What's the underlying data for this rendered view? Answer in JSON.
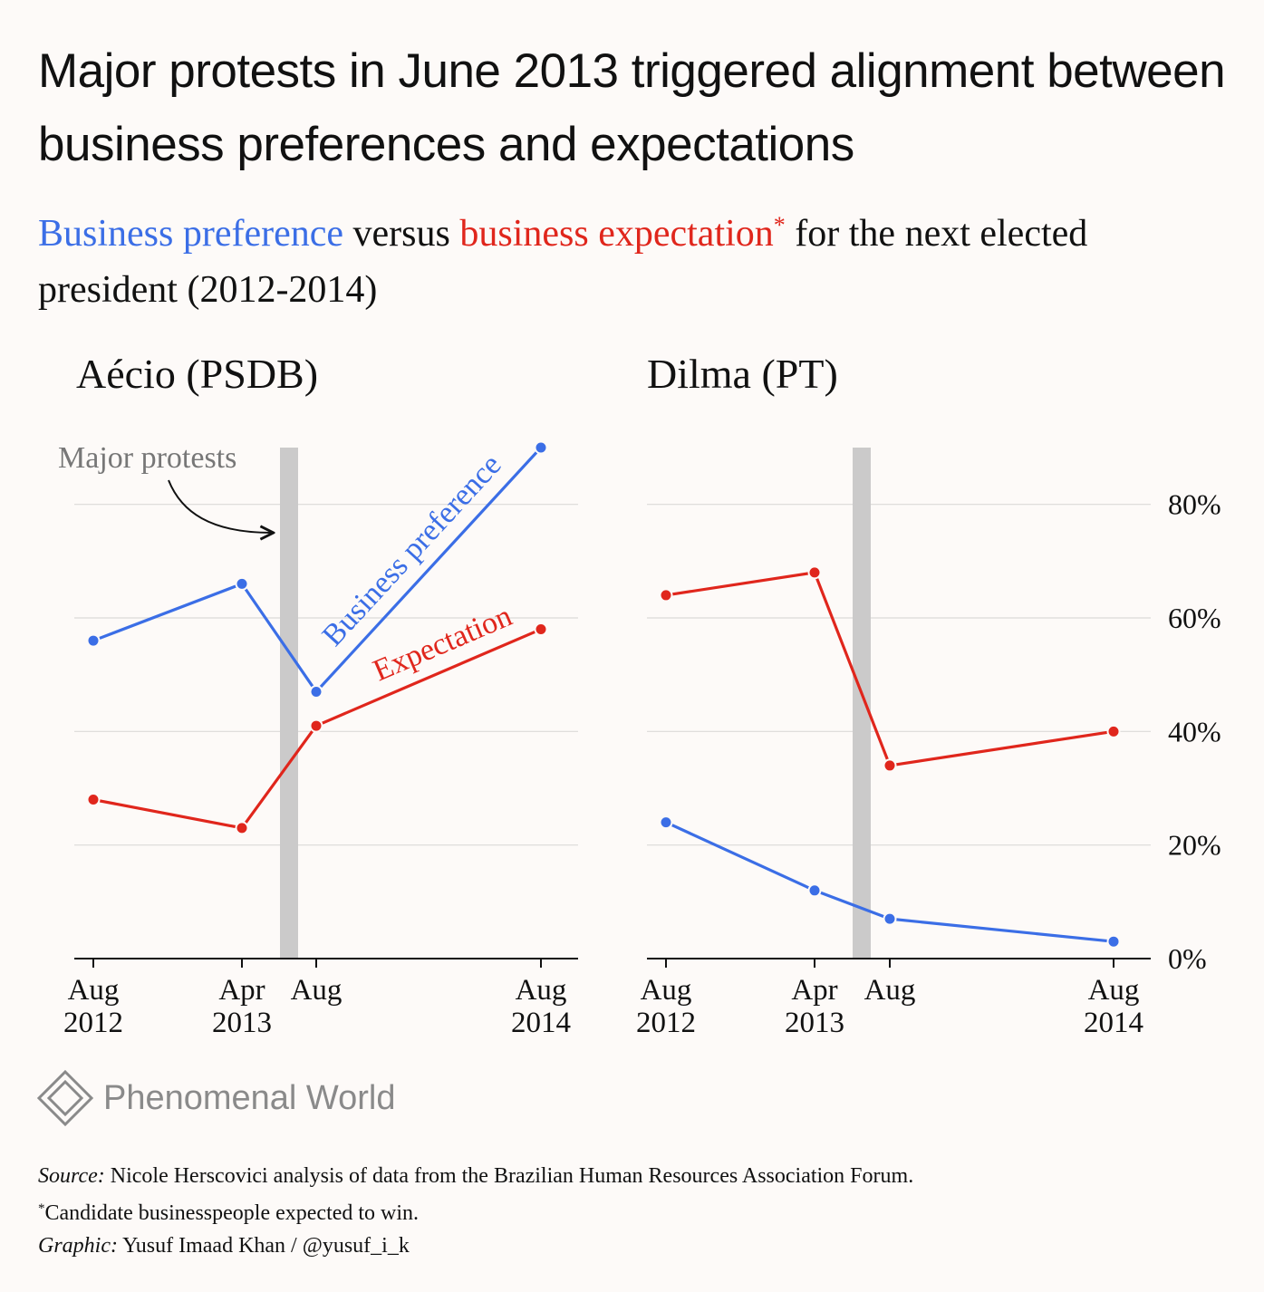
{
  "title": "Major protests in June 2013 triggered alignment between business preferences and expectations",
  "subtitle": {
    "preference": "Business preference",
    "versus": " versus ",
    "expectation": "business expectation",
    "star": "*",
    "rest": " for the next elected president (2012-2014)"
  },
  "colors": {
    "preference": "#3b6ee6",
    "expectation": "#e0261c",
    "protest_band": "#cbcaca",
    "background": "#fdfaf8"
  },
  "chart_data": [
    {
      "type": "line",
      "title": "Aécio (PSDB)",
      "x": [
        "Aug 2012",
        "Apr 2013",
        "Aug 2013",
        "Aug 2014"
      ],
      "x_tick_labels": [
        [
          "Aug",
          "2012"
        ],
        [
          "Apr",
          "2013"
        ],
        [
          "Aug",
          ""
        ],
        [
          "Aug",
          "2014"
        ]
      ],
      "series": [
        {
          "name": "Business preference",
          "key": "preference",
          "values": [
            56,
            66,
            47,
            90
          ]
        },
        {
          "name": "Expectation",
          "key": "expectation",
          "values": [
            28,
            23,
            41,
            58
          ]
        }
      ],
      "ylim": [
        0,
        90
      ],
      "yticks": [
        0,
        20,
        40,
        60,
        80
      ],
      "grid": true,
      "annotation": "Major protests",
      "protest_period": "June 2013"
    },
    {
      "type": "line",
      "title": "Dilma (PT)",
      "x": [
        "Aug 2012",
        "Apr 2013",
        "Aug 2013",
        "Aug 2014"
      ],
      "x_tick_labels": [
        [
          "Aug",
          "2012"
        ],
        [
          "Apr",
          "2013"
        ],
        [
          "Aug",
          ""
        ],
        [
          "Aug",
          "2014"
        ]
      ],
      "series": [
        {
          "key": "preference",
          "values": [
            24,
            12,
            7,
            3
          ]
        },
        {
          "key": "expectation",
          "values": [
            64,
            68,
            34,
            40
          ]
        }
      ],
      "ylim": [
        0,
        90
      ],
      "yticks": [
        0,
        20,
        40,
        60,
        80
      ],
      "ytick_labels": [
        "0%",
        "20%",
        "40%",
        "60%",
        "80%"
      ],
      "grid": true,
      "protest_period": "June 2013"
    }
  ],
  "brand": {
    "name": "Phenomenal World",
    "icon": "diamond-logo-icon"
  },
  "footer": {
    "source_label": "Source:",
    "source_text": " Nicole Herscovici analysis of data from the Brazilian Human Resources Association Forum.",
    "note_star": "*",
    "note_text": "Candidate businesspeople expected to win.",
    "graphic_label": "Graphic:",
    "graphic_text": " Yusuf Imaad Khan / @yusuf_i_k"
  }
}
